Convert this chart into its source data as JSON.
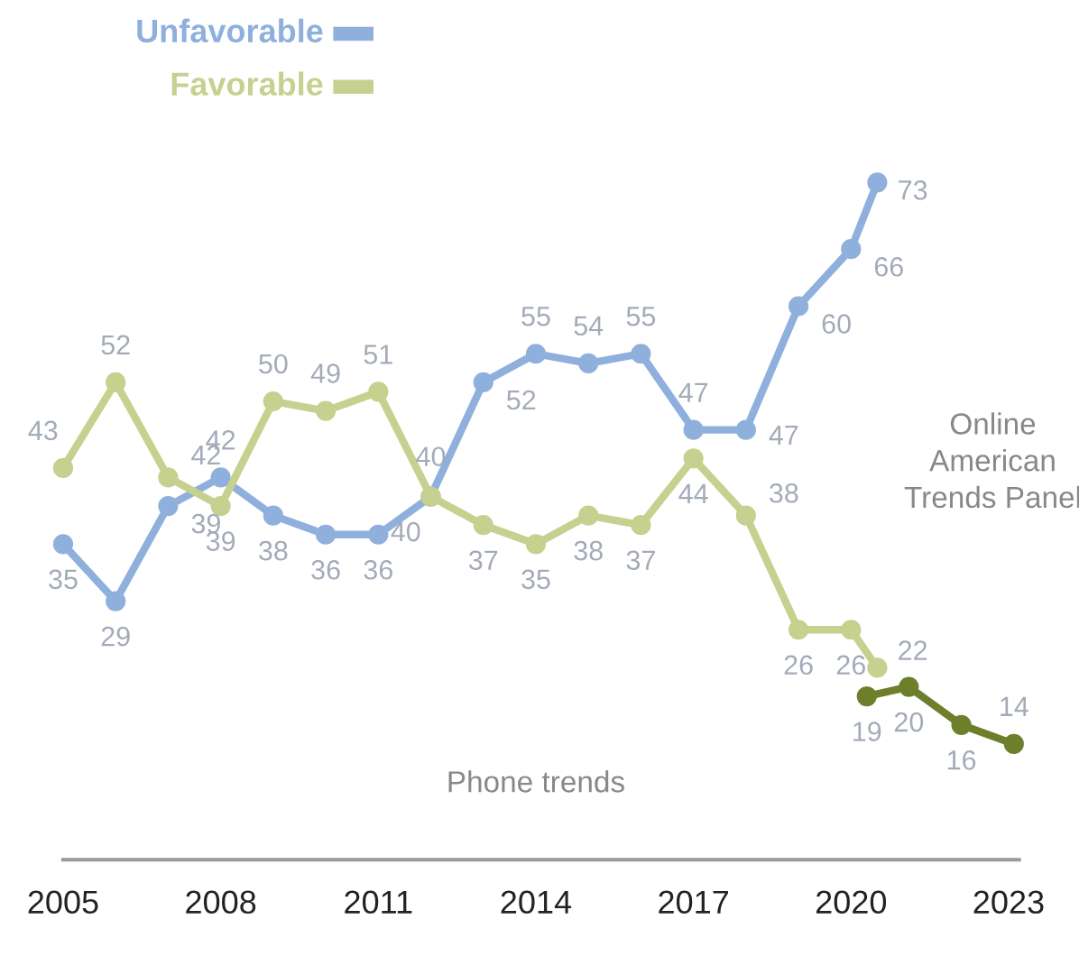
{
  "chart_data": {
    "type": "line",
    "series": [
      {
        "name": "Unfavorable",
        "color": "#8fb0dc",
        "x": [
          2005,
          2006,
          2007,
          2008,
          2009,
          2010,
          2011,
          2012,
          2013,
          2014,
          2015,
          2016,
          2017,
          2018,
          2019,
          2020,
          2020.5
        ],
        "values": [
          35,
          29,
          39,
          42,
          38,
          36,
          36,
          40,
          52,
          55,
          54,
          55,
          47,
          47,
          60,
          66,
          73
        ],
        "value_labels": [
          "35",
          "29",
          "39",
          "42",
          "38",
          "36",
          "36",
          "40",
          "52",
          "55",
          "54",
          "55",
          "47",
          "47",
          "60",
          "66",
          "73"
        ]
      },
      {
        "name": "Favorable",
        "color": "#c6d08f",
        "x": [
          2005,
          2006,
          2007,
          2008,
          2009,
          2010,
          2011,
          2012,
          2013,
          2014,
          2015,
          2016,
          2017,
          2018,
          2019,
          2020,
          2020.5
        ],
        "values": [
          43,
          52,
          42,
          39,
          50,
          49,
          51,
          40,
          37,
          35,
          38,
          37,
          44,
          38,
          26,
          26,
          22
        ],
        "value_labels": [
          "43",
          "52",
          "42",
          "39",
          "50",
          "49",
          "51",
          "40",
          "37",
          "35",
          "38",
          "37",
          "44",
          "38",
          "26",
          "26",
          "22"
        ]
      },
      {
        "color": "#6e7f2c",
        "x": [
          2020.3,
          2021.1,
          2022.1,
          2023.1
        ],
        "values": [
          19,
          20,
          16,
          14
        ],
        "value_labels": [
          "19",
          "20",
          "16",
          "14"
        ]
      }
    ],
    "xlim": [
      2005,
      2023.2
    ],
    "xticks": [
      2005,
      2008,
      2011,
      2014,
      2017,
      2020,
      2023
    ],
    "tick_labels": "x",
    "grid": false,
    "legend": "top left",
    "marker": "circle",
    "line_style": "solid",
    "annotations": [
      "Phone trends",
      "Online\nAmerican\nTrends Panel"
    ]
  }
}
